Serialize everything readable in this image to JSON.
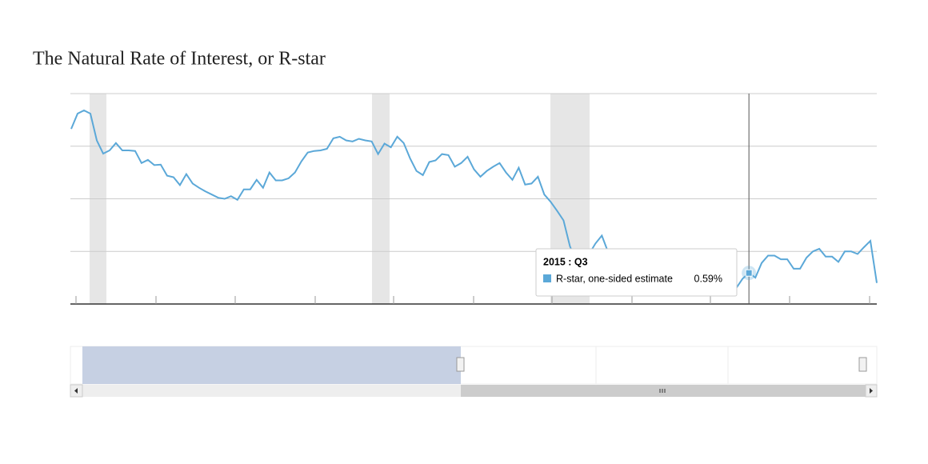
{
  "chart_data": {
    "type": "line",
    "title": "The Natural Rate of Interest, or R-star",
    "ylim": [
      0,
      4
    ],
    "yticks": [
      0,
      1,
      2,
      3,
      4
    ],
    "grid": true,
    "series": [
      {
        "name": "R-star, one-sided estimate",
        "color": "#5ba8d8",
        "values": [
          3.33,
          3.62,
          3.68,
          3.62,
          3.11,
          2.86,
          2.92,
          3.06,
          2.92,
          2.92,
          2.91,
          2.68,
          2.74,
          2.64,
          2.65,
          2.44,
          2.41,
          2.26,
          2.47,
          2.29,
          2.21,
          2.14,
          2.08,
          2.02,
          2.0,
          2.05,
          1.98,
          2.18,
          2.18,
          2.36,
          2.21,
          2.5,
          2.35,
          2.35,
          2.39,
          2.5,
          2.71,
          2.88,
          2.91,
          2.92,
          2.95,
          3.15,
          3.18,
          3.11,
          3.09,
          3.14,
          3.11,
          3.09,
          2.85,
          3.05,
          2.98,
          3.18,
          3.06,
          2.77,
          2.53,
          2.45,
          2.7,
          2.73,
          2.85,
          2.83,
          2.61,
          2.68,
          2.8,
          2.56,
          2.42,
          2.53,
          2.61,
          2.68,
          2.5,
          2.36,
          2.59,
          2.27,
          2.29,
          2.42,
          2.08,
          1.94,
          1.77,
          1.59,
          1.1,
          0.8,
          0.78,
          0.95,
          1.15,
          1.3,
          0.98,
          0.88,
          0.8,
          0.72,
          0.62,
          0.7,
          0.6,
          0.75,
          0.85,
          0.65,
          0.55,
          0.45,
          0.55,
          0.35,
          0.48,
          0.4,
          0.52,
          0.45,
          0.5,
          0.38,
          0.3,
          0.48,
          0.59,
          0.5,
          0.78,
          0.92,
          0.92,
          0.85,
          0.85,
          0.67,
          0.67,
          0.88,
          1.0,
          1.05,
          0.9,
          0.9,
          0.8,
          1.0,
          1.0,
          0.95,
          1.08,
          1.2,
          0.4
        ]
      }
    ],
    "tooltip": {
      "title": "2015 : Q3",
      "series": "R-star, one-sided estimate",
      "value": 0.59,
      "value_label": "0.59%"
    }
  }
}
